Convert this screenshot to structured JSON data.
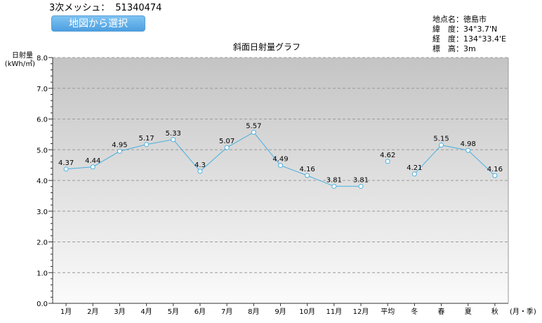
{
  "header": {
    "mesh_label": "3次メッシュ：",
    "mesh_code": "51340474",
    "map_button_label": "地図から選択"
  },
  "location": {
    "name_label": "地点名：",
    "name": "徳島市",
    "lat_label": "緯　度：",
    "lat": "34°3.7'N",
    "lon_label": "経　度：",
    "lon": "134°33.4'E",
    "alt_label": "標　高：",
    "alt": "3m"
  },
  "colors": {
    "line": "#4bb0e0",
    "grid": "#9a9a9a",
    "plot_top": "#c4c4c4",
    "plot_bottom": "#fbfbfb"
  },
  "chart_data": {
    "type": "line",
    "title": "斜面日射量グラフ",
    "ylabel": "日射量\n(kWh/㎡)",
    "xlabel_suffix": "(月・季)",
    "ylim": [
      0,
      8
    ],
    "yticks": [
      "0.0",
      "1.0",
      "2.0",
      "3.0",
      "4.0",
      "5.0",
      "6.0",
      "7.0",
      "8.0"
    ],
    "grid": true,
    "categories": [
      "1月",
      "2月",
      "3月",
      "4月",
      "5月",
      "6月",
      "7月",
      "8月",
      "9月",
      "10月",
      "11月",
      "12月",
      "平均",
      "冬",
      "春",
      "夏",
      "秋"
    ],
    "values": [
      4.37,
      4.44,
      4.95,
      5.17,
      5.33,
      4.3,
      5.07,
      5.57,
      4.49,
      4.16,
      3.81,
      3.81,
      4.62,
      4.21,
      5.15,
      4.98,
      4.16
    ],
    "value_labels": [
      "4.37",
      "4.44",
      "4.95",
      "5.17",
      "5.33",
      "4.3",
      "5.07",
      "5.57",
      "4.49",
      "4.16",
      "3.81",
      "3.81",
      "4.62",
      "4.21",
      "5.15",
      "4.98",
      "4.16"
    ],
    "segments": [
      [
        0,
        11
      ],
      [
        12,
        12
      ],
      [
        13,
        16
      ]
    ]
  }
}
